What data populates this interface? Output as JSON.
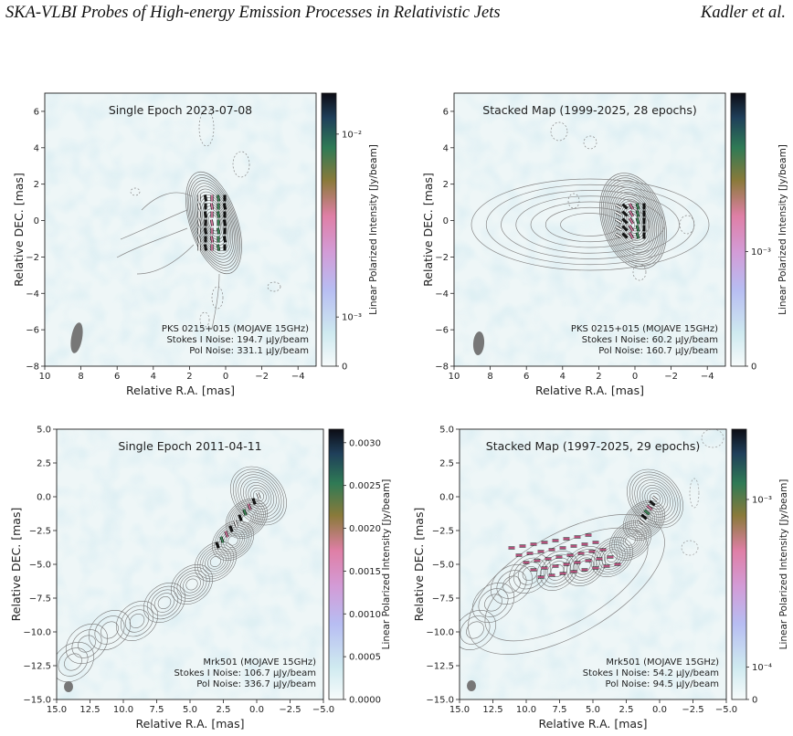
{
  "header": {
    "title": "SKA-VLBI Probes of High-energy Emission Processes in Relativistic Jets",
    "author": "Kadler et al."
  },
  "chart_data": [
    {
      "type": "contour_map",
      "title": "Single Epoch 2023-07-08",
      "xlabel": "Relative R.A. [mas]",
      "ylabel": "Relative DEC. [mas]",
      "xlim": [
        10,
        -5
      ],
      "ylim": [
        -8,
        7
      ],
      "xticks": [
        "10",
        "8",
        "6",
        "4",
        "2",
        "0",
        "−2",
        "−4"
      ],
      "yticks": [
        "−8",
        "−6",
        "−4",
        "−2",
        "0",
        "2",
        "4",
        "6"
      ],
      "colorbar": {
        "label": "Linear Polarized Intensity [Jy/beam]",
        "scale": "log",
        "ticks": [
          "10⁻²",
          "10⁻³",
          "0"
        ]
      },
      "info": [
        "PKS 0215+015 (MOJAVE 15GHz)",
        "Stokes I Noise: 194.7 µJy/beam",
        "Pol Noise: 331.1 µJy/beam"
      ]
    },
    {
      "type": "contour_map",
      "title": "Stacked Map (1999-2025, 28 epochs)",
      "xlabel": "Relative R.A. [mas]",
      "ylabel": "Relative DEC. [mas]",
      "xlim": [
        10,
        -5
      ],
      "ylim": [
        -8,
        7
      ],
      "xticks": [
        "10",
        "8",
        "6",
        "4",
        "2",
        "0",
        "−2",
        "−4"
      ],
      "yticks": [
        "−8",
        "−6",
        "−4",
        "−2",
        "0",
        "2",
        "4",
        "6"
      ],
      "colorbar": {
        "label": "Linear Polarized Intensity [Jy/beam]",
        "scale": "log",
        "ticks": [
          "10⁻³",
          "0"
        ]
      },
      "info": [
        "PKS 0215+015 (MOJAVE 15GHz)",
        "Stokes I Noise: 60.2 µJy/beam",
        "Pol Noise: 160.7 µJy/beam"
      ]
    },
    {
      "type": "contour_map",
      "title": "Single Epoch 2011-04-11",
      "xlabel": "Relative R.A. [mas]",
      "ylabel": "Relative DEC. [mas]",
      "xlim": [
        15,
        -5
      ],
      "ylim": [
        -15,
        5
      ],
      "xticks": [
        "15.0",
        "12.5",
        "10.0",
        "7.5",
        "5.0",
        "2.5",
        "0.0",
        "−2.5",
        "−5.0"
      ],
      "yticks": [
        "−15.0",
        "−12.5",
        "−10.0",
        "−7.5",
        "−5.0",
        "−2.5",
        "0.0",
        "2.5",
        "5.0"
      ],
      "colorbar": {
        "label": "Linear Polarized Intensity [Jy/beam]",
        "scale": "linear",
        "ticks": [
          "0.0000",
          "0.0005",
          "0.0010",
          "0.0015",
          "0.0020",
          "0.0025",
          "0.0030"
        ]
      },
      "info": [
        "Mrk501 (MOJAVE 15GHz)",
        "Stokes I Noise: 106.7 µJy/beam",
        "Pol Noise: 336.7 µJy/beam"
      ]
    },
    {
      "type": "contour_map",
      "title": "Stacked Map (1997-2025, 29 epochs)",
      "xlabel": "Relative R.A. [mas]",
      "ylabel": "Relative DEC. [mas]",
      "xlim": [
        15,
        -5
      ],
      "ylim": [
        -15,
        5
      ],
      "xticks": [
        "15.0",
        "12.5",
        "10.0",
        "7.5",
        "5.0",
        "2.5",
        "0.0",
        "−2.5",
        "−5.0"
      ],
      "yticks": [
        "−15.0",
        "−12.5",
        "−10.0",
        "−7.5",
        "−5.0",
        "−2.5",
        "0.0",
        "2.5",
        "5.0"
      ],
      "colorbar": {
        "label": "Linear Polarized Intensity [Jy/beam]",
        "scale": "log",
        "ticks": [
          "10⁻³",
          "10⁻⁴",
          "0"
        ]
      },
      "info": [
        "Mrk501 (MOJAVE 15GHz)",
        "Stokes I Noise: 54.2 µJy/beam",
        "Pol Noise: 94.5 µJy/beam"
      ]
    }
  ]
}
